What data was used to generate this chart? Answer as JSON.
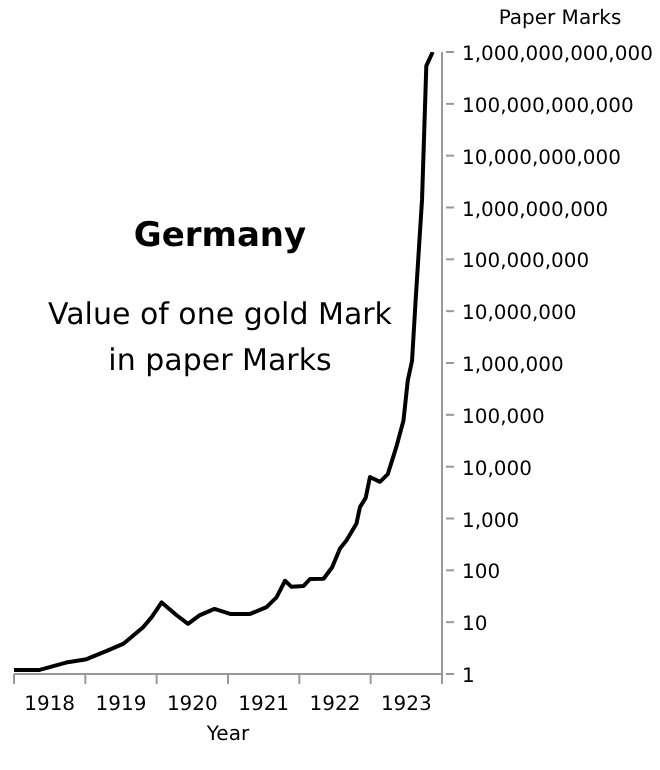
{
  "chart_data": {
    "type": "line",
    "title": "Germany",
    "subtitle": "Value of one gold Mark\nin paper Marks",
    "xlabel": "Year",
    "ylabel": "Paper Marks",
    "log": "y",
    "marker": "none",
    "x": [
      1918.0,
      1918.36,
      1918.73,
      1919.0,
      1919.3,
      1919.53,
      1919.81,
      1919.93,
      1920.07,
      1920.28,
      1920.44,
      1920.6,
      1920.81,
      1921.03,
      1921.31,
      1921.54,
      1921.68,
      1921.8,
      1921.89,
      1922.06,
      1922.15,
      1922.34,
      1922.46,
      1922.57,
      1922.66,
      1922.8,
      1922.85,
      1922.93,
      1922.99,
      1923.13,
      1923.24,
      1923.36,
      1923.46,
      1923.52,
      1923.58,
      1923.63,
      1923.72,
      1923.78,
      1923.87
    ],
    "series": [
      {
        "color": "#000000",
        "values": [
          1.2,
          1.2,
          1.66,
          1.9,
          2.8,
          3.8,
          8,
          12.5,
          24,
          13.6,
          9.3,
          13.5,
          18,
          14.4,
          14.4,
          19.5,
          30,
          63,
          48,
          50,
          68,
          69,
          115,
          265,
          375,
          790,
          1660,
          2500,
          6300,
          5100,
          7200,
          24000,
          78000,
          460000,
          1100000,
          16000000,
          1400000000,
          540000000000,
          1000000000000
        ]
      }
    ],
    "xlim": [
      1918,
      1924
    ],
    "xticks": [
      {
        "value": 1918,
        "label": null
      },
      {
        "value": 1918.5,
        "label": "1918"
      },
      {
        "value": 1919,
        "label": null
      },
      {
        "value": 1919.5,
        "label": "1919"
      },
      {
        "value": 1920,
        "label": null
      },
      {
        "value": 1920.5,
        "label": "1920"
      },
      {
        "value": 1921,
        "label": null
      },
      {
        "value": 1921.5,
        "label": "1921"
      },
      {
        "value": 1922,
        "label": null
      },
      {
        "value": 1922.5,
        "label": "1922"
      },
      {
        "value": 1923,
        "label": null
      },
      {
        "value": 1923.5,
        "label": "1923"
      },
      {
        "value": 1924,
        "label": null
      }
    ],
    "ylim": [
      1,
      1000000000000
    ],
    "yticks": [
      {
        "value": 1,
        "label": "1"
      },
      {
        "value": 10,
        "label": "10"
      },
      {
        "value": 100,
        "label": "100"
      },
      {
        "value": 1000,
        "label": "1,000"
      },
      {
        "value": 10000,
        "label": "10,000"
      },
      {
        "value": 100000,
        "label": "100,000"
      },
      {
        "value": 1000000,
        "label": "1,000,000"
      },
      {
        "value": 10000000,
        "label": "10,000,000"
      },
      {
        "value": 100000000,
        "label": "100,000,000"
      },
      {
        "value": 1000000000,
        "label": "1,000,000,000"
      },
      {
        "value": 10000000000,
        "label": "10,000,000,000"
      },
      {
        "value": 100000000000,
        "label": "100,000,000,000"
      },
      {
        "value": 1000000000000,
        "label": "1,000,000,000,000"
      }
    ]
  }
}
